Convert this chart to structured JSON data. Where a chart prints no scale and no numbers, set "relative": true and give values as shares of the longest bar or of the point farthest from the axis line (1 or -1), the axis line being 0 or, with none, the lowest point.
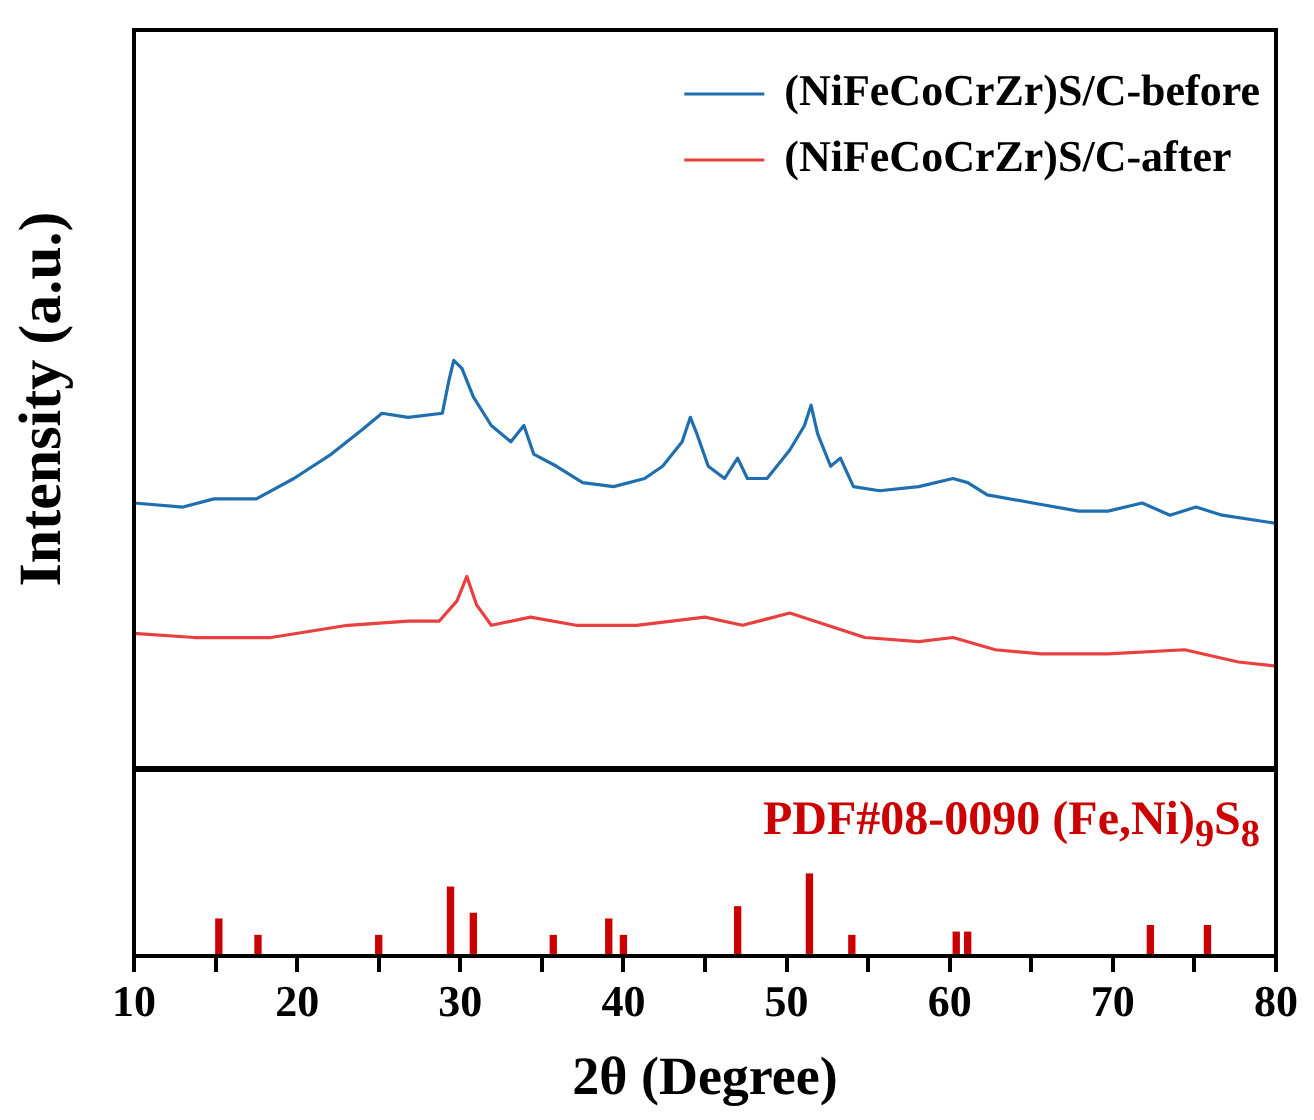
{
  "chart_data": [
    {
      "type": "line",
      "relative": true,
      "ylabel": "Intensity (a.u.)",
      "xlim": [
        10,
        80
      ],
      "tick_labels": false,
      "legend": "top right",
      "marker": "none",
      "series": [
        {
          "name": "(NiFeCoCrZr)S/C-before",
          "color": "#1f6fb0",
          "x": [
            10,
            13,
            14.9,
            17.5,
            19.8,
            22.1,
            24,
            25.2,
            26.8,
            28.9,
            29.3,
            29.6,
            30.1,
            30.8,
            31.9,
            33.1,
            33.9,
            34.5,
            35.9,
            37.5,
            39.4,
            41.3,
            42.4,
            43.6,
            44.1,
            44.5,
            45.2,
            46.2,
            47,
            47.6,
            48.8,
            50.2,
            51.1,
            51.5,
            51.9,
            52.7,
            53.3,
            54.1,
            55.7,
            58.1,
            60.2,
            61.1,
            62.3,
            65.1,
            67.9,
            69.7,
            71.8,
            73.5,
            75.1,
            76.7,
            80
          ],
          "values": [
            0.65,
            0.64,
            0.66,
            0.66,
            0.71,
            0.77,
            0.83,
            0.87,
            0.86,
            0.87,
            0.95,
            1,
            0.98,
            0.91,
            0.84,
            0.8,
            0.84,
            0.77,
            0.74,
            0.7,
            0.69,
            0.71,
            0.74,
            0.8,
            0.86,
            0.82,
            0.74,
            0.71,
            0.76,
            0.71,
            0.71,
            0.78,
            0.84,
            0.89,
            0.82,
            0.74,
            0.76,
            0.69,
            0.68,
            0.69,
            0.71,
            0.7,
            0.67,
            0.65,
            0.63,
            0.63,
            0.65,
            0.62,
            0.64,
            0.62,
            0.6
          ]
        },
        {
          "name": "(NiFeCoCrZr)S/C-after",
          "color": "#e8403f",
          "x": [
            10,
            13.7,
            18.4,
            23.1,
            26.8,
            28.7,
            29.8,
            30.4,
            31,
            31.9,
            34.3,
            37.1,
            40.8,
            45,
            47.3,
            50.2,
            52.5,
            54.8,
            58.1,
            60.2,
            62.8,
            65.6,
            69.7,
            74.4,
            77.7,
            80
          ],
          "values": [
            0.33,
            0.32,
            0.32,
            0.35,
            0.36,
            0.36,
            0.41,
            0.47,
            0.4,
            0.35,
            0.37,
            0.35,
            0.35,
            0.37,
            0.35,
            0.38,
            0.35,
            0.32,
            0.31,
            0.32,
            0.29,
            0.28,
            0.28,
            0.29,
            0.26,
            0.25
          ]
        }
      ]
    },
    {
      "type": "bar",
      "relative": true,
      "xlabel": "2θ (Degree)",
      "xlim": [
        10,
        80
      ],
      "xticks": [
        10,
        {
          "value": 15,
          "label": null
        },
        20,
        {
          "value": 25,
          "label": null
        },
        30,
        {
          "value": 35,
          "label": null
        },
        40,
        {
          "value": 45,
          "label": null
        },
        50,
        {
          "value": 55,
          "label": null
        },
        60,
        {
          "value": 65,
          "label": null
        },
        70,
        {
          "value": 75,
          "label": null
        },
        80
      ],
      "tick_labels": "x",
      "color": "#cc0000",
      "x": [
        15.2,
        17.6,
        25.0,
        29.4,
        30.8,
        35.7,
        39.1,
        40.0,
        47.0,
        51.4,
        54.0,
        60.4,
        61.1,
        72.3,
        75.8
      ],
      "values": [
        0.45,
        0.25,
        0.25,
        0.84,
        0.52,
        0.25,
        0.45,
        0.25,
        0.6,
        1,
        0.25,
        0.29,
        0.29,
        0.37,
        0.37
      ],
      "annotations": [
        "PDF#08-0090 (Fe,Ni)$_{9}$S$_{8}$"
      ]
    }
  ]
}
